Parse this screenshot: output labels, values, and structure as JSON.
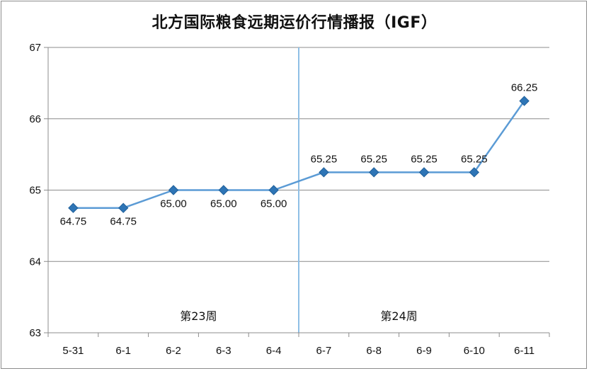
{
  "chart_data": {
    "type": "line",
    "title": "北方国际粮食远期运价行情播报（IGF）",
    "categories": [
      "5-31",
      "6-1",
      "6-2",
      "6-3",
      "6-4",
      "6-7",
      "6-8",
      "6-9",
      "6-10",
      "6-11"
    ],
    "series": [
      {
        "values": [
          64.75,
          64.75,
          65.0,
          65.0,
          65.0,
          65.25,
          65.25,
          65.25,
          65.25,
          66.25
        ],
        "labels": [
          "64.75",
          "64.75",
          "65.00",
          "65.00",
          "65.00",
          "65.25",
          "65.25",
          "65.25",
          "65.25",
          "66.25"
        ]
      }
    ],
    "y_ticks": [
      "63",
      "64",
      "65",
      "66",
      "67"
    ],
    "ylim": [
      63,
      67
    ],
    "grid": true,
    "week_divider_after_category": "6-4",
    "week_labels": [
      {
        "text": "第23周",
        "center_between": [
          "6-1",
          "6-4"
        ]
      },
      {
        "text": "第24周",
        "center_between": [
          "6-7",
          "6-10"
        ]
      }
    ],
    "colors": {
      "line": "#5b9bd5",
      "marker_fill": "#2e75b6",
      "marker_stroke": "#1f5f99",
      "grid": "#8c8c8c",
      "divider": "#8fbfe6"
    }
  }
}
